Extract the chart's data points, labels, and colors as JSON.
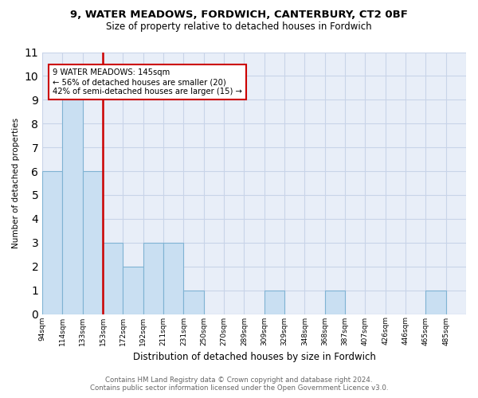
{
  "title": "9, WATER MEADOWS, FORDWICH, CANTERBURY, CT2 0BF",
  "subtitle": "Size of property relative to detached houses in Fordwich",
  "xlabel": "Distribution of detached houses by size in Fordwich",
  "ylabel": "Number of detached properties",
  "bar_labels": [
    "94sqm",
    "114sqm",
    "133sqm",
    "153sqm",
    "172sqm",
    "192sqm",
    "211sqm",
    "231sqm",
    "250sqm",
    "270sqm",
    "289sqm",
    "309sqm",
    "329sqm",
    "348sqm",
    "368sqm",
    "387sqm",
    "407sqm",
    "426sqm",
    "446sqm",
    "465sqm",
    "485sqm"
  ],
  "bar_heights": [
    6,
    9,
    6,
    3,
    2,
    3,
    3,
    1,
    0,
    0,
    0,
    1,
    0,
    0,
    1,
    0,
    0,
    0,
    0,
    1,
    0
  ],
  "bar_color": "#c9dff2",
  "bar_edge_color": "#7fb3d3",
  "subject_bin_index": 2,
  "subject_line_color": "#cc0000",
  "annotation_text": "9 WATER MEADOWS: 145sqm\n← 56% of detached houses are smaller (20)\n42% of semi-detached houses are larger (15) →",
  "annotation_box_color": "#cc0000",
  "ylim": [
    0,
    11
  ],
  "yticks": [
    0,
    1,
    2,
    3,
    4,
    5,
    6,
    7,
    8,
    9,
    10,
    11
  ],
  "grid_color": "#c8d4e8",
  "background_color": "#e8eef8",
  "footer_line1": "Contains HM Land Registry data © Crown copyright and database right 2024.",
  "footer_line2": "Contains public sector information licensed under the Open Government Licence v3.0."
}
